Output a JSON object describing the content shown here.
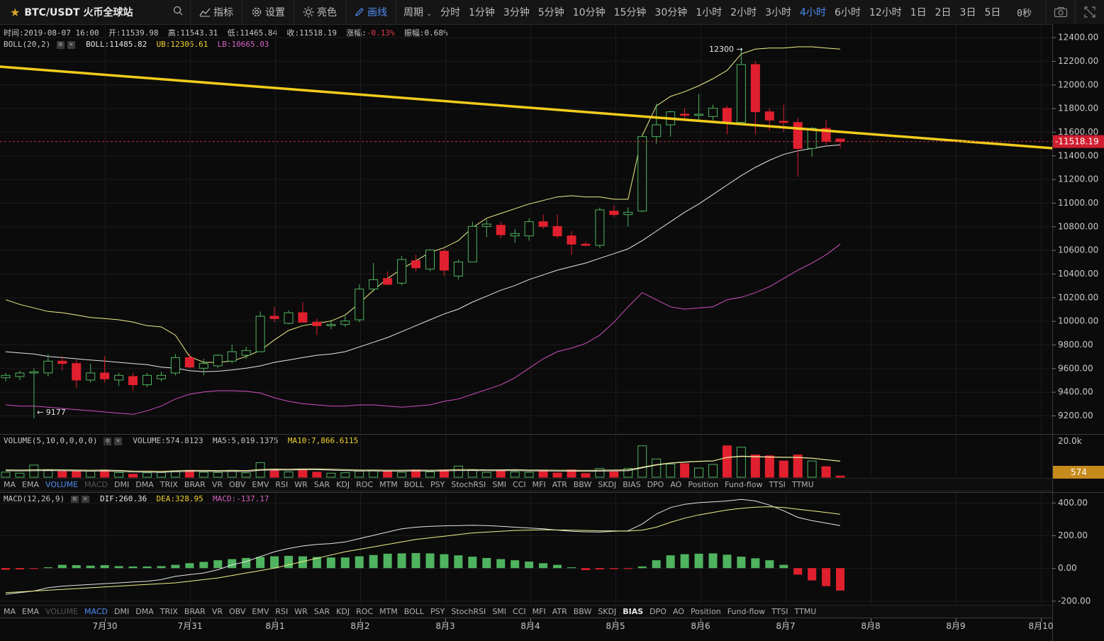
{
  "toolbar": {
    "symbol": "BTC/USDT 火币全球站",
    "indicators_label": "指标",
    "settings_label": "设置",
    "theme_label": "亮色",
    "draw_label": "画线",
    "period_label": "周期",
    "periods": [
      "分时",
      "1分钟",
      "3分钟",
      "5分钟",
      "10分钟",
      "15分钟",
      "30分钟",
      "1小时",
      "2小时",
      "3小时",
      "4小时",
      "6小时",
      "12小时",
      "1日",
      "2日",
      "3日",
      "5日"
    ],
    "active_period": "4小时",
    "countdown": "0秒"
  },
  "ohlc": {
    "time_label": "时间:",
    "time": "2019-08-07 16:00",
    "open_label": "开:",
    "open": "11539.98",
    "high_label": "高:",
    "high": "11543.31",
    "low_label": "低:",
    "low": "11465.84",
    "close_label": "收:",
    "close": "11518.19",
    "change_label": "涨幅:",
    "change": "-0.13%",
    "amp_label": "振幅:",
    "amp": "0.68%"
  },
  "boll": {
    "name": "BOLL(20,2)",
    "mid_label": "BOLL:",
    "mid": "11485.82",
    "ub_label": "UB:",
    "ub": "12306.61",
    "lb_label": "LB:",
    "lb": "10665.03"
  },
  "volume_info": {
    "name": "VOLUME(5,10,0,0,0,0)",
    "vol_label": "VOLUME:",
    "vol": "574.8123",
    "ma5_label": "MA5:",
    "ma5": "5,019.1375",
    "ma10_label": "MA10:",
    "ma10": "7,866.6115"
  },
  "macd_info": {
    "name": "MACD(12,26,9)",
    "dif_label": "DIF:",
    "dif": "260.36",
    "dea_label": "DEA:",
    "dea": "328.95",
    "macd_label": "MACD:",
    "macd": "-137.17"
  },
  "indicator_tabs": [
    "MA",
    "EMA",
    "VOLUME",
    "MACD",
    "DMI",
    "DMA",
    "TRIX",
    "BRAR",
    "VR",
    "OBV",
    "EMV",
    "RSI",
    "WR",
    "SAR",
    "KDJ",
    "ROC",
    "MTM",
    "BOLL",
    "PSY",
    "StochRSI",
    "SMI",
    "CCI",
    "MFI",
    "ATR",
    "BBW",
    "SKDJ",
    "BIAS",
    "DPO",
    "AO",
    "Position",
    "Fund-flow",
    "TTSI",
    "TTMU"
  ],
  "price_axis": [
    "12400.00",
    "12200.00",
    "12000.00",
    "11800.00",
    "11600.00",
    "11400.00",
    "11200.00",
    "11000.00",
    "10800.00",
    "10600.00",
    "10400.00",
    "10200.00",
    "10000.00",
    "9800.00",
    "9600.00",
    "9400.00",
    "9200.00"
  ],
  "current_price_tag": "11518.19",
  "volume_axis": "20.0k",
  "volume_tag": "574",
  "macd_axis": [
    "400.00",
    "200.00",
    "0.00",
    "-200.00"
  ],
  "date_axis": [
    "7月30",
    "7月31",
    "8月1",
    "8月2",
    "8月3",
    "8月4",
    "8月5",
    "8月6",
    "8月7",
    "8月8",
    "8月9",
    "8月10"
  ],
  "high_marker": "12300",
  "low_marker": "9177",
  "colors": {
    "up": "#4fb35f",
    "down": "#e0202e",
    "trendline": "#f2cc1d",
    "upper_band": "#f2f08a",
    "mid_band": "#e6e6e6",
    "lower_band": "#d04fc0",
    "accent": "#4e8cf0"
  },
  "chart_data": {
    "type": "candlestick",
    "interval": "4小时",
    "candles": [
      {
        "o": 9520,
        "h": 9560,
        "l": 9490,
        "c": 9540
      },
      {
        "o": 9530,
        "h": 9580,
        "l": 9500,
        "c": 9560
      },
      {
        "o": 9560,
        "h": 9600,
        "l": 9177,
        "c": 9570
      },
      {
        "o": 9560,
        "h": 9720,
        "l": 9530,
        "c": 9660
      },
      {
        "o": 9660,
        "h": 9700,
        "l": 9580,
        "c": 9640
      },
      {
        "o": 9640,
        "h": 9670,
        "l": 9430,
        "c": 9500
      },
      {
        "o": 9500,
        "h": 9640,
        "l": 9480,
        "c": 9560
      },
      {
        "o": 9560,
        "h": 9700,
        "l": 9480,
        "c": 9510
      },
      {
        "o": 9500,
        "h": 9560,
        "l": 9450,
        "c": 9540
      },
      {
        "o": 9530,
        "h": 9560,
        "l": 9410,
        "c": 9460
      },
      {
        "o": 9460,
        "h": 9560,
        "l": 9440,
        "c": 9540
      },
      {
        "o": 9510,
        "h": 9570,
        "l": 9490,
        "c": 9540
      },
      {
        "o": 9560,
        "h": 9720,
        "l": 9540,
        "c": 9690
      },
      {
        "o": 9690,
        "h": 9720,
        "l": 9600,
        "c": 9610
      },
      {
        "o": 9600,
        "h": 9680,
        "l": 9540,
        "c": 9640
      },
      {
        "o": 9620,
        "h": 9720,
        "l": 9600,
        "c": 9710
      },
      {
        "o": 9660,
        "h": 9800,
        "l": 9640,
        "c": 9740
      },
      {
        "o": 9710,
        "h": 9780,
        "l": 9680,
        "c": 9750
      },
      {
        "o": 9740,
        "h": 10080,
        "l": 9740,
        "c": 10040
      },
      {
        "o": 10040,
        "h": 10120,
        "l": 9990,
        "c": 10020
      },
      {
        "o": 9980,
        "h": 10090,
        "l": 9970,
        "c": 10070
      },
      {
        "o": 10070,
        "h": 10160,
        "l": 9990,
        "c": 9990
      },
      {
        "o": 9990,
        "h": 10020,
        "l": 9880,
        "c": 9960
      },
      {
        "o": 9960,
        "h": 10010,
        "l": 9930,
        "c": 9970
      },
      {
        "o": 9970,
        "h": 10040,
        "l": 9950,
        "c": 10000
      },
      {
        "o": 10010,
        "h": 10310,
        "l": 9990,
        "c": 10270
      },
      {
        "o": 10270,
        "h": 10490,
        "l": 10250,
        "c": 10350
      },
      {
        "o": 10360,
        "h": 10420,
        "l": 10300,
        "c": 10310
      },
      {
        "o": 10320,
        "h": 10550,
        "l": 10300,
        "c": 10520
      },
      {
        "o": 10510,
        "h": 10560,
        "l": 10420,
        "c": 10450
      },
      {
        "o": 10440,
        "h": 10610,
        "l": 10420,
        "c": 10600
      },
      {
        "o": 10590,
        "h": 10610,
        "l": 10380,
        "c": 10430
      },
      {
        "o": 10380,
        "h": 10520,
        "l": 10350,
        "c": 10500
      },
      {
        "o": 10500,
        "h": 10840,
        "l": 10500,
        "c": 10800
      },
      {
        "o": 10800,
        "h": 10860,
        "l": 10710,
        "c": 10820
      },
      {
        "o": 10810,
        "h": 10840,
        "l": 10700,
        "c": 10730
      },
      {
        "o": 10720,
        "h": 10780,
        "l": 10660,
        "c": 10740
      },
      {
        "o": 10720,
        "h": 10870,
        "l": 10680,
        "c": 10840
      },
      {
        "o": 10840,
        "h": 10900,
        "l": 10780,
        "c": 10800
      },
      {
        "o": 10800,
        "h": 10900,
        "l": 10700,
        "c": 10720
      },
      {
        "o": 10720,
        "h": 10760,
        "l": 10560,
        "c": 10650
      },
      {
        "o": 10650,
        "h": 10670,
        "l": 10630,
        "c": 10640
      },
      {
        "o": 10640,
        "h": 10960,
        "l": 10620,
        "c": 10940
      },
      {
        "o": 10930,
        "h": 10980,
        "l": 10880,
        "c": 10900
      },
      {
        "o": 10900,
        "h": 10960,
        "l": 10800,
        "c": 10920
      },
      {
        "o": 10930,
        "h": 11580,
        "l": 10920,
        "c": 11560
      },
      {
        "o": 11560,
        "h": 11840,
        "l": 11500,
        "c": 11660
      },
      {
        "o": 11660,
        "h": 11780,
        "l": 11560,
        "c": 11770
      },
      {
        "o": 11750,
        "h": 11800,
        "l": 11690,
        "c": 11740
      },
      {
        "o": 11740,
        "h": 11920,
        "l": 11700,
        "c": 11750
      },
      {
        "o": 11730,
        "h": 11830,
        "l": 11700,
        "c": 11800
      },
      {
        "o": 11800,
        "h": 11820,
        "l": 11580,
        "c": 11680
      },
      {
        "o": 11680,
        "h": 12300,
        "l": 11660,
        "c": 12170
      },
      {
        "o": 12170,
        "h": 12200,
        "l": 11580,
        "c": 11770
      },
      {
        "o": 11770,
        "h": 11800,
        "l": 11610,
        "c": 11700
      },
      {
        "o": 11690,
        "h": 11830,
        "l": 11600,
        "c": 11680
      },
      {
        "o": 11680,
        "h": 11720,
        "l": 11220,
        "c": 11460
      },
      {
        "o": 11460,
        "h": 11640,
        "l": 11390,
        "c": 11630
      },
      {
        "o": 11630,
        "h": 11700,
        "l": 11490,
        "c": 11520
      },
      {
        "o": 11540,
        "h": 11543,
        "l": 11466,
        "c": 11518
      }
    ],
    "boll_upper": [
      10180,
      10140,
      10110,
      10080,
      10070,
      10050,
      10030,
      10020,
      10010,
      9990,
      9960,
      9950,
      9880,
      9700,
      9650,
      9650,
      9660,
      9700,
      9750,
      9840,
      9920,
      9960,
      9980,
      10000,
      10050,
      10150,
      10260,
      10360,
      10440,
      10510,
      10580,
      10620,
      10680,
      10790,
      10870,
      10910,
      10950,
      10990,
      11020,
      11050,
      11060,
      11050,
      11050,
      11030,
      11030,
      11570,
      11820,
      11900,
      11940,
      11990,
      12050,
      12120,
      12260,
      12300,
      12310,
      12310,
      12320,
      12320,
      12310,
      12300
    ],
    "boll_mid": [
      9740,
      9730,
      9720,
      9700,
      9690,
      9680,
      9670,
      9660,
      9650,
      9640,
      9630,
      9610,
      9600,
      9580,
      9570,
      9575,
      9585,
      9600,
      9620,
      9650,
      9670,
      9690,
      9710,
      9720,
      9740,
      9780,
      9820,
      9860,
      9910,
      9960,
      10010,
      10060,
      10100,
      10160,
      10210,
      10260,
      10300,
      10350,
      10390,
      10430,
      10460,
      10490,
      10530,
      10570,
      10610,
      10680,
      10760,
      10840,
      10920,
      10990,
      11070,
      11150,
      11230,
      11300,
      11360,
      11410,
      11440,
      11460,
      11480,
      11490
    ],
    "boll_lower": [
      9290,
      9280,
      9280,
      9270,
      9260,
      9250,
      9240,
      9230,
      9220,
      9210,
      9240,
      9280,
      9340,
      9380,
      9400,
      9410,
      9410,
      9405,
      9390,
      9350,
      9320,
      9300,
      9290,
      9280,
      9280,
      9290,
      9290,
      9280,
      9270,
      9280,
      9290,
      9320,
      9340,
      9380,
      9420,
      9460,
      9520,
      9600,
      9680,
      9740,
      9770,
      9810,
      9880,
      9990,
      10120,
      10240,
      10180,
      10120,
      10100,
      10110,
      10120,
      10180,
      10200,
      10240,
      10290,
      10360,
      10430,
      10490,
      10560,
      10650
    ],
    "volume": [
      2500,
      2000,
      6000,
      3400,
      2800,
      3000,
      3000,
      3500,
      2300,
      1500,
      2200,
      2300,
      3000,
      3400,
      2500,
      2400,
      3400,
      2200,
      7200,
      3500,
      2600,
      3600,
      2500,
      2000,
      2200,
      3000,
      3400,
      2800,
      2400,
      3600,
      2600,
      3600,
      5500,
      3600,
      2400,
      3300,
      2600,
      2400,
      3100,
      2100,
      3600,
      1800,
      4300,
      2700,
      4300,
      15500,
      9000,
      6500,
      6700,
      4500,
      6300,
      15500,
      14800,
      11000,
      10600,
      8000,
      11000,
      8000,
      5200,
      574
    ],
    "volume_ma": [
      3200,
      3100,
      3200,
      3300,
      3200,
      3100,
      3000,
      3100,
      2900,
      2600,
      2500,
      2400,
      2700,
      2900,
      2900,
      2800,
      2900,
      2800,
      3400,
      3600,
      3500,
      3700,
      3700,
      3500,
      3300,
      3100,
      3100,
      3000,
      3000,
      3100,
      3000,
      3100,
      3300,
      3300,
      3200,
      3200,
      3300,
      3100,
      3100,
      3000,
      3000,
      2900,
      3000,
      3100,
      3200,
      4600,
      6000,
      6900,
      7400,
      7800,
      8000,
      9800,
      10400,
      10200,
      10000,
      9900,
      9800,
      9400,
      8600,
      7866
    ],
    "macd_hist": [
      -10,
      -8,
      -5,
      5,
      20,
      18,
      15,
      18,
      12,
      10,
      10,
      12,
      20,
      30,
      38,
      48,
      55,
      62,
      68,
      72,
      75,
      72,
      68,
      65,
      65,
      72,
      80,
      88,
      90,
      92,
      90,
      85,
      78,
      70,
      62,
      55,
      48,
      40,
      30,
      20,
      5,
      -12,
      -8,
      -6,
      -5,
      10,
      48,
      78,
      85,
      88,
      90,
      82,
      70,
      60,
      48,
      20,
      -40,
      -75,
      -110,
      -137
    ],
    "macd_dif": [
      -160,
      -150,
      -140,
      -120,
      -110,
      -105,
      -100,
      -95,
      -90,
      -85,
      -80,
      -70,
      -50,
      -40,
      -30,
      -10,
      20,
      40,
      70,
      100,
      120,
      135,
      145,
      150,
      160,
      180,
      200,
      220,
      240,
      250,
      255,
      258,
      260,
      262,
      260,
      255,
      250,
      245,
      240,
      232,
      225,
      222,
      220,
      225,
      228,
      270,
      330,
      370,
      390,
      400,
      405,
      410,
      420,
      410,
      385,
      350,
      310,
      290,
      275,
      260
    ],
    "macd_dea": [
      -150,
      -145,
      -140,
      -135,
      -130,
      -125,
      -120,
      -115,
      -110,
      -105,
      -100,
      -95,
      -90,
      -80,
      -70,
      -60,
      -45,
      -30,
      -15,
      0,
      20,
      40,
      60,
      80,
      100,
      115,
      130,
      145,
      160,
      175,
      185,
      195,
      205,
      215,
      220,
      225,
      230,
      232,
      234,
      233,
      232,
      230,
      228,
      227,
      226,
      232,
      250,
      280,
      305,
      325,
      340,
      355,
      365,
      372,
      375,
      370,
      360,
      350,
      340,
      329
    ],
    "price_range": [
      9050,
      12500
    ],
    "macd_range": [
      -220,
      460
    ],
    "volume_range": [
      0,
      21000
    ]
  }
}
